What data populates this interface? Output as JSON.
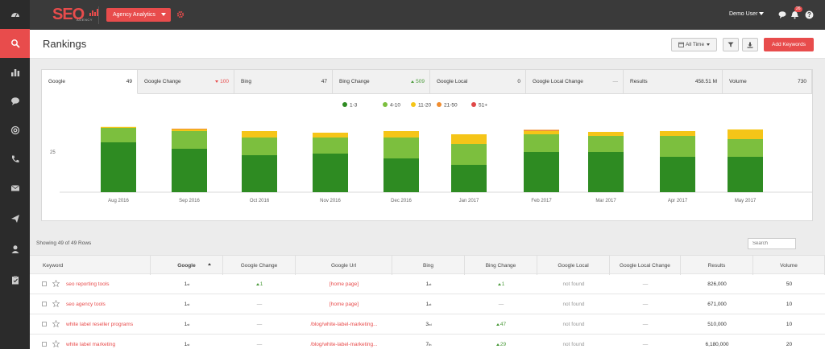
{
  "app": {
    "logo_text": "SEO",
    "logo_sub": "AGENCY",
    "agency_select": "Agency Analytics",
    "user": "Demo User",
    "notification_count": "26"
  },
  "sidebar": {
    "items": [
      {
        "name": "dashboard-icon"
      },
      {
        "name": "search-icon",
        "active": true
      },
      {
        "name": "bar-chart-icon"
      },
      {
        "name": "chat-icon"
      },
      {
        "name": "at-sign-icon"
      },
      {
        "name": "phone-icon"
      },
      {
        "name": "envelope-icon"
      },
      {
        "name": "send-icon"
      },
      {
        "name": "user-icon"
      },
      {
        "name": "clipboard-icon"
      }
    ]
  },
  "header": {
    "title": "Rankings",
    "date_range": "All Time",
    "add_button": "Add Keywords"
  },
  "tabs": [
    {
      "label": "Google",
      "value": "49",
      "trend": "none"
    },
    {
      "label": "Google Change",
      "value": "100",
      "trend": "down"
    },
    {
      "label": "Bing",
      "value": "47",
      "trend": "none"
    },
    {
      "label": "Bing Change",
      "value": "509",
      "trend": "up"
    },
    {
      "label": "Google Local",
      "value": "0",
      "trend": "none"
    },
    {
      "label": "Google Local Change",
      "value": "—",
      "trend": "muted"
    },
    {
      "label": "Results",
      "value": "458.51 M",
      "trend": "none"
    },
    {
      "label": "Volume",
      "value": "730",
      "trend": "none"
    }
  ],
  "chart_data": {
    "type": "bar",
    "stacked": true,
    "categories": [
      "Aug 2016",
      "Sep 2016",
      "Oct 2016",
      "Nov 2016",
      "Dec 2016",
      "Jan 2017",
      "Feb 2017",
      "Mar 2017",
      "Apr 2017",
      "May 2017"
    ],
    "series": [
      {
        "name": "1-3",
        "color": "#2e8b22",
        "values": [
          31,
          27,
          23,
          24,
          21,
          17,
          25,
          25,
          22,
          22
        ]
      },
      {
        "name": "4-10",
        "color": "#7cbf3e",
        "values": [
          9,
          11,
          11,
          10,
          13,
          13,
          11,
          10,
          13,
          11
        ]
      },
      {
        "name": "11-20",
        "color": "#f5c518",
        "values": [
          0.6,
          1,
          4,
          3,
          4,
          6,
          2,
          2.5,
          3,
          6
        ]
      },
      {
        "name": "21-50",
        "color": "#f08c2e",
        "values": [
          0,
          0.5,
          0,
          0,
          0,
          0,
          0.8,
          0,
          0,
          0
        ]
      },
      {
        "name": "51+",
        "color": "#e04848",
        "values": [
          0,
          0,
          0,
          0,
          0,
          0,
          0,
          0,
          0,
          0
        ]
      }
    ],
    "yticks": [
      25
    ],
    "ylim": [
      0,
      45
    ],
    "legend": "top-center"
  },
  "table": {
    "showing": "Showing 49 of 49 Rows",
    "search_placeholder": "Search",
    "columns": [
      "Keyword",
      "Google",
      "Google Change",
      "Google Url",
      "Bing",
      "Bing Change",
      "Google Local",
      "Google Local Change",
      "Results",
      "Volume"
    ],
    "rows": [
      {
        "keyword": "seo reporting tools",
        "google": "1",
        "google_sup": "st",
        "google_change": "1",
        "gc_up": true,
        "url": "[home page]",
        "bing": "1",
        "bing_sup": "st",
        "bing_change": "1",
        "bc_up": true,
        "local": "not found",
        "local_change": "—",
        "results": "826,000",
        "volume": "50"
      },
      {
        "keyword": "seo agency tools",
        "google": "1",
        "google_sup": "st",
        "google_change": "—",
        "gc_up": false,
        "url": "[home page]",
        "bing": "1",
        "bing_sup": "st",
        "bing_change": "—",
        "bc_up": false,
        "local": "not found",
        "local_change": "—",
        "results": "671,000",
        "volume": "10"
      },
      {
        "keyword": "white label reseller programs",
        "google": "1",
        "google_sup": "st",
        "google_change": "—",
        "gc_up": false,
        "url": "/blog/white-label-marketing...",
        "bing": "3",
        "bing_sup": "rd",
        "bing_change": "47",
        "bc_up": true,
        "local": "not found",
        "local_change": "—",
        "results": "510,000",
        "volume": "10"
      },
      {
        "keyword": "white label marketing",
        "google": "1",
        "google_sup": "st",
        "google_change": "—",
        "gc_up": false,
        "url": "/blog/white-label-marketing...",
        "bing": "7",
        "bing_sup": "th",
        "bing_change": "29",
        "bc_up": true,
        "local": "not found",
        "local_change": "—",
        "results": "6,180,000",
        "volume": "20"
      }
    ]
  }
}
